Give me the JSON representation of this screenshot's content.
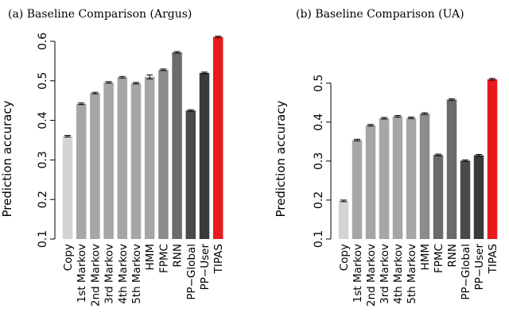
{
  "chart_data": [
    {
      "type": "bar",
      "title": "(a)  Baseline Comparison (Argus)",
      "xlabel": "",
      "ylabel": "Prediction accuracy",
      "ylim": [
        0.1,
        0.62
      ],
      "yticks": [
        "0.1",
        "0.2",
        "0.3",
        "0.4",
        "0.5",
        "0.6"
      ],
      "categories": [
        "Copy",
        "1st Markov",
        "2nd Markov",
        "3rd Markov",
        "4th Markov",
        "5th Markov",
        "HMM",
        "FPMC",
        "RNN",
        "PP−Global",
        "PP−User",
        "TIPAS"
      ],
      "values": [
        0.36,
        0.442,
        0.469,
        0.496,
        0.509,
        0.494,
        0.51,
        0.528,
        0.572,
        0.425,
        0.52,
        0.611
      ],
      "error": [
        0.002,
        0.002,
        0.002,
        0.002,
        0.002,
        0.002,
        0.005,
        0.002,
        0.002,
        0.002,
        0.002,
        0.002
      ],
      "colors": [
        "#d3d3d3",
        "#a6a6a6",
        "#a6a6a6",
        "#a6a6a6",
        "#a6a6a6",
        "#a6a6a6",
        "#a6a6a6",
        "#8c8c8c",
        "#6b6b6b",
        "#4a4a4a",
        "#3a3a3a",
        "#e8191e"
      ],
      "grid": false,
      "legend": "none"
    },
    {
      "type": "bar",
      "title": "(b)  Baseline Comparison (UA)",
      "xlabel": "",
      "ylabel": "Prediction accuracy",
      "ylim": [
        0.1,
        0.53
      ],
      "yticks": [
        "0.1",
        "0.2",
        "0.3",
        "0.4",
        "0.5"
      ],
      "categories": [
        "Copy",
        "1st Markov",
        "2nd Markov",
        "3rd Markov",
        "4th Markov",
        "5th Markov",
        "HMM",
        "FPMC",
        "RNN",
        "PP−Global",
        "PP−User",
        "TIPAS"
      ],
      "values": [
        0.198,
        0.354,
        0.392,
        0.41,
        0.415,
        0.411,
        0.422,
        0.316,
        0.458,
        0.301,
        0.315,
        0.51
      ],
      "error": [
        0.002,
        0.002,
        0.002,
        0.002,
        0.002,
        0.002,
        0.002,
        0.002,
        0.002,
        0.002,
        0.002,
        0.002
      ],
      "colors": [
        "#d3d3d3",
        "#a6a6a6",
        "#a6a6a6",
        "#a6a6a6",
        "#a6a6a6",
        "#a6a6a6",
        "#8c8c8c",
        "#6b6b6b",
        "#6b6b6b",
        "#4a4a4a",
        "#3a3a3a",
        "#e8191e"
      ],
      "grid": false,
      "legend": "none"
    }
  ]
}
